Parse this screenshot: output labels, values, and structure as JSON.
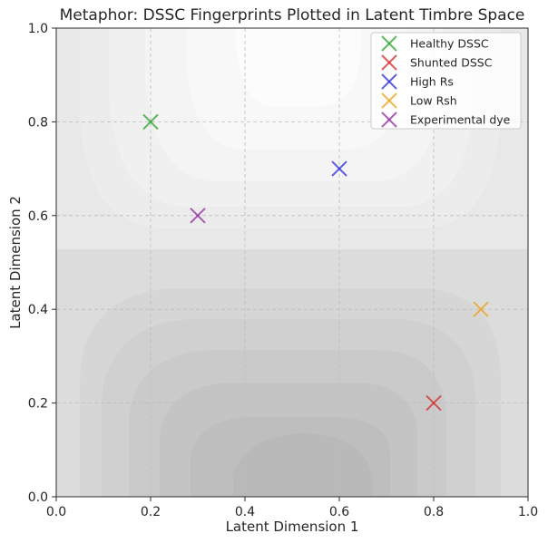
{
  "chart_data": {
    "type": "scatter",
    "title": "Metaphor: DSSC Fingerprints Plotted in Latent Timbre Space",
    "xlabel": "Latent Dimension 1",
    "ylabel": "Latent Dimension 2",
    "xlim": [
      0.0,
      1.0
    ],
    "ylim": [
      0.0,
      1.0
    ],
    "xticks": [
      "0.0",
      "0.2",
      "0.4",
      "0.6",
      "0.8",
      "1.0"
    ],
    "yticks": [
      "0.0",
      "0.2",
      "0.4",
      "0.6",
      "0.8",
      "1.0"
    ],
    "grid": true,
    "legend_position": "top-right",
    "marker": "x",
    "background": "filled contour shading (light at top, darker toward bottom-center)",
    "series": [
      {
        "name": "Healthy DSSC",
        "color": "#2ca02c",
        "x": [
          0.2
        ],
        "y": [
          0.8
        ]
      },
      {
        "name": "Shunted DSSC",
        "color": "#d62728",
        "x": [
          0.8
        ],
        "y": [
          0.2
        ]
      },
      {
        "name": "High Rs",
        "color": "#2b2bd6",
        "x": [
          0.6
        ],
        "y": [
          0.7
        ]
      },
      {
        "name": "Low Rsh",
        "color": "#e8a317",
        "x": [
          0.9
        ],
        "y": [
          0.4
        ]
      },
      {
        "name": "Experimental dye",
        "color": "#8e2a9c",
        "x": [
          0.3
        ],
        "y": [
          0.6
        ]
      }
    ]
  }
}
